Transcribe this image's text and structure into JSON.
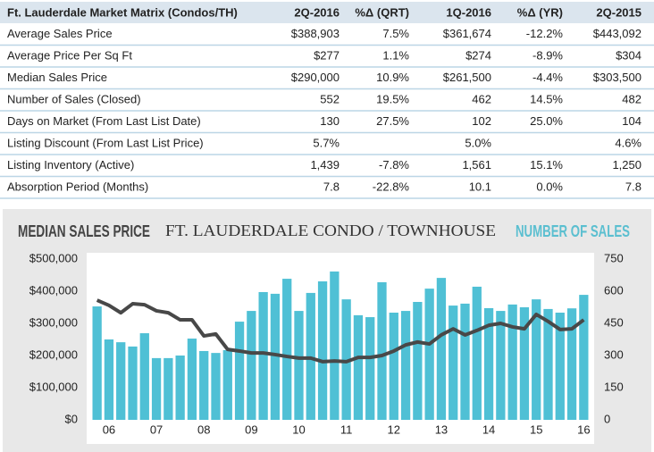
{
  "table": {
    "title": "Ft. Lauderdale Market Matrix (Condos/TH)",
    "columns": [
      "2Q-2016",
      "%Δ (QRT)",
      "1Q-2016",
      "%Δ (YR)",
      "2Q-2015"
    ],
    "rows": [
      [
        "Average Sales Price",
        "$388,903",
        "7.5%",
        "$361,674",
        "-12.2%",
        "$443,092"
      ],
      [
        "Average Price Per Sq Ft",
        "$277",
        "1.1%",
        "$274",
        "-8.9%",
        "$304"
      ],
      [
        "Median Sales Price",
        "$290,000",
        "10.9%",
        "$261,500",
        "-4.4%",
        "$303,500"
      ],
      [
        "Number of Sales (Closed)",
        "552",
        "19.5%",
        "462",
        "14.5%",
        "482"
      ],
      [
        "Days on Market (From Last List Date)",
        "130",
        "27.5%",
        "102",
        "25.0%",
        "104"
      ],
      [
        "Listing Discount (From Last List Price)",
        "5.7%",
        null,
        "5.0%",
        null,
        "4.6%"
      ],
      [
        "Listing Inventory (Active)",
        "1,439",
        "-7.8%",
        "1,561",
        "15.1%",
        "1,250"
      ],
      [
        "Absorption Period (Months)",
        "7.8",
        "-22.8%",
        "10.1",
        "0.0%",
        "7.8"
      ]
    ]
  },
  "chart_data": {
    "type": "combo",
    "title": "FT. LAUDERDALE CONDO / TOWNHOUSE",
    "y_label": "MEDIAN SALES PRICE",
    "y2_label": "NUMBER OF SALES",
    "categories": [
      null,
      "06",
      null,
      null,
      null,
      "07",
      null,
      null,
      null,
      "08",
      null,
      null,
      null,
      "09",
      null,
      null,
      null,
      "10",
      null,
      null,
      null,
      "11",
      null,
      null,
      null,
      "12",
      null,
      null,
      null,
      "13",
      null,
      null,
      null,
      "14",
      null,
      null,
      null,
      "15",
      null,
      null,
      null,
      "16"
    ],
    "ylim": [
      0,
      500000
    ],
    "yticks": [
      {
        "value": 0,
        "label": "$0"
      },
      {
        "value": 100000,
        "label": "$100,000"
      },
      {
        "value": 200000,
        "label": "$200,000"
      },
      {
        "value": 300000,
        "label": "$300,000"
      },
      {
        "value": 400000,
        "label": "$400,000"
      },
      {
        "value": 500000,
        "label": "$500,000"
      }
    ],
    "y2lim": [
      0,
      750
    ],
    "y2ticks": [
      0,
      150,
      300,
      450,
      600,
      750
    ],
    "series": [
      {
        "name": "NUMBER OF SALES",
        "type": "bar",
        "axis": "y2",
        "color": "#4fc0d5",
        "values": [
          529,
          375,
          362,
          342,
          404,
          288,
          288,
          300,
          379,
          321,
          312,
          325,
          458,
          508,
          596,
          588,
          658,
          508,
          592,
          646,
          692,
          562,
          488,
          479,
          642,
          500,
          508,
          550,
          612,
          662,
          533,
          542,
          621,
          521,
          508,
          538,
          525,
          562,
          517,
          500,
          520,
          583
        ]
      },
      {
        "name": "MEDIAN SALES PRICE",
        "type": "line",
        "axis": "y",
        "color": "#484848",
        "values": [
          372000,
          356000,
          333000,
          361000,
          358000,
          339000,
          333000,
          311000,
          311000,
          261000,
          267000,
          219000,
          214000,
          208000,
          208000,
          203000,
          197000,
          192000,
          192000,
          181000,
          183000,
          181000,
          194000,
          194000,
          200000,
          214000,
          233000,
          242000,
          236000,
          264000,
          283000,
          264000,
          278000,
          294000,
          300000,
          289000,
          283000,
          328000,
          306000,
          281000,
          283000,
          311000
        ]
      }
    ]
  }
}
